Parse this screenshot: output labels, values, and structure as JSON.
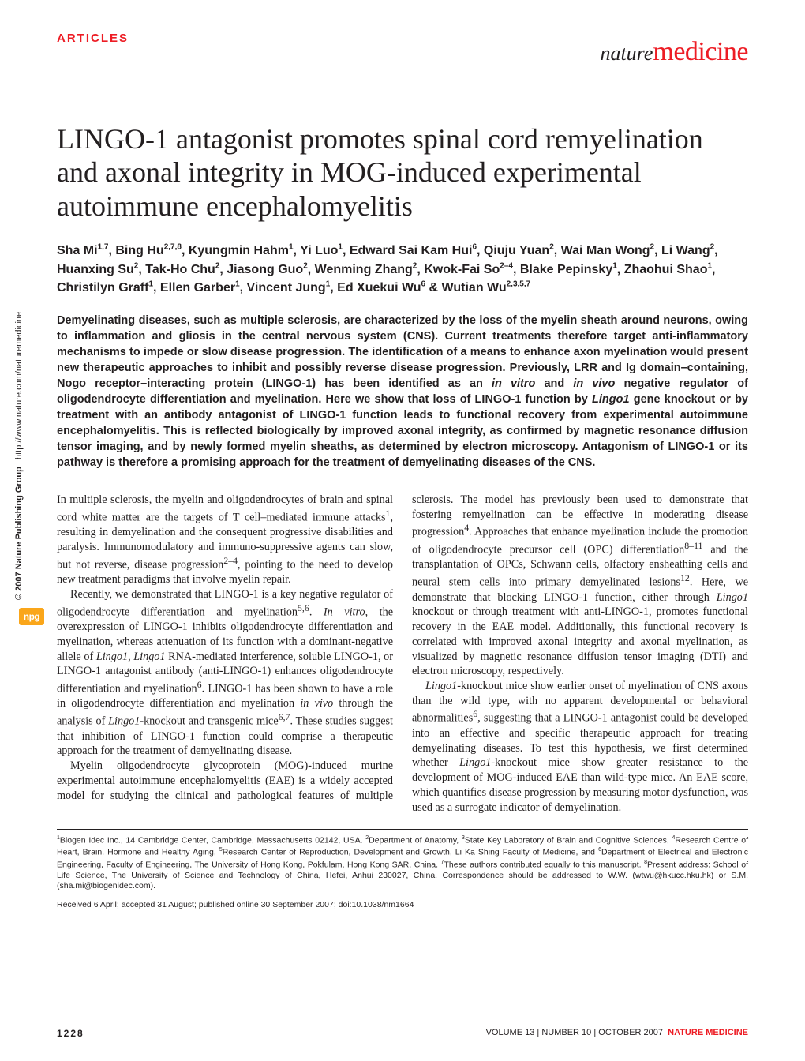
{
  "header": {
    "section": "ARTICLES",
    "journal_nature": "nature",
    "journal_medicine": "medicine"
  },
  "title": "LINGO-1 antagonist promotes spinal cord remyelination and axonal integrity in MOG-induced experimental autoimmune encephalomyelitis",
  "authors_html": "Sha Mi<sup>1,7</sup>, Bing Hu<sup>2,7,8</sup>, Kyungmin Hahm<sup>1</sup>, Yi Luo<sup>1</sup>, Edward Sai Kam Hui<sup>6</sup>, Qiuju Yuan<sup>2</sup>, Wai Man Wong<sup>2</sup>, Li Wang<sup>2</sup>, Huanxing Su<sup>2</sup>, Tak-Ho Chu<sup>2</sup>, Jiasong Guo<sup>2</sup>, Wenming Zhang<sup>2</sup>, Kwok-Fai So<sup>2–4</sup>, Blake Pepinsky<sup>1</sup>, Zhaohui Shao<sup>1</sup>, Christilyn Graff<sup>1</sup>, Ellen Garber<sup>1</sup>, Vincent Jung<sup>1</sup>, Ed Xuekui Wu<sup>6</sup> & Wutian Wu<sup>2,3,5,7</sup>",
  "abstract_html": "Demyelinating diseases, such as multiple sclerosis, are characterized by the loss of the myelin sheath around neurons, owing to inflammation and gliosis in the central nervous system (CNS). Current treatments therefore target anti-inflammatory mechanisms to impede or slow disease progression. The identification of a means to enhance axon myelination would present new therapeutic approaches to inhibit and possibly reverse disease progression. Previously, LRR and Ig domain–containing, Nogo receptor–interacting protein (LINGO-1) has been identified as an <em>in vitro</em> and <em>in vivo</em> negative regulator of oligodendrocyte differentiation and myelination. Here we show that loss of LINGO-1 function by <em>Lingo1</em> gene knockout or by treatment with an antibody antagonist of LINGO-1 function leads to functional recovery from experimental autoimmune encephalomyelitis. This is reflected biologically by improved axonal integrity, as confirmed by magnetic resonance diffusion tensor imaging, and by newly formed myelin sheaths, as determined by electron microscopy. Antagonism of LINGO-1 or its pathway is therefore a promising approach for the treatment of demyelinating diseases of the CNS.",
  "body": {
    "p1": "In multiple sclerosis, the myelin and oligodendrocytes of brain and spinal cord white matter are the targets of T cell–mediated immune attacks<sup>1</sup>, resulting in demyelination and the consequent progressive disabilities and paralysis. Immunomodulatory and immuno-suppressive agents can slow, but not reverse, disease progression<sup>2–4</sup>, pointing to the need to develop new treatment paradigms that involve myelin repair.",
    "p2": "Recently, we demonstrated that LINGO-1 is a key negative regulator of oligodendrocyte differentiation and myelination<sup>5,6</sup>. <em>In vitro</em>, the overexpression of LINGO-1 inhibits oligodendrocyte differentiation and myelination, whereas attenuation of its function with a dominant-negative allele of <em>Lingo1</em>, <em>Lingo1</em> RNA-mediated interference, soluble LINGO-1, or LINGO-1 antagonist antibody (anti-LINGO-1) enhances oligodendrocyte differentiation and myelination<sup>6</sup>. LINGO-1 has been shown to have a role in oligodendrocyte differentiation and myelination <em>in vivo</em> through the analysis of <em>Lingo1</em>-knockout and transgenic mice<sup>6,7</sup>. These studies suggest that inhibition of LINGO-1 function could comprise a therapeutic approach for the treatment of demyelinating disease.",
    "p3": "Myelin oligodendrocyte glycoprotein (MOG)-induced murine experimental autoimmune encephalomyelitis (EAE) is a widely accepted model for studying the clinical and pathological features of multiple sclerosis. The model has previously been used to demonstrate that fostering remyelination can be effective in moderating disease progression<sup>4</sup>. Approaches that enhance myelination include the promotion of oligodendrocyte precursor cell (OPC) differentiation<sup>8–11</sup> and the transplantation of OPCs, Schwann cells, olfactory ensheathing cells and neural stem cells into primary demyelinated lesions<sup>12</sup>. Here, we demonstrate that blocking LINGO-1 function, either through <em>Lingo1</em> knockout or through treatment with anti-LINGO-1, promotes functional recovery in the EAE model. Additionally, this functional recovery is correlated with improved axonal integrity and axonal myelination, as visualized by magnetic resonance diffusion tensor imaging (DTI) and electron microscopy, respectively.",
    "p4": "<em>Lingo1</em>-knockout mice show earlier onset of myelination of CNS axons than the wild type, with no apparent developmental or behavioral abnormalities<sup>6</sup>, suggesting that a LINGO-1 antagonist could be developed into an effective and specific therapeutic approach for treating demyelinating diseases. To test this hypothesis, we first determined whether <em>Lingo1</em>-knockout mice show greater resistance to the development of MOG-induced EAE than wild-type mice. An EAE score, which quantifies disease progression by measuring motor dysfunction, was used as a surrogate indicator of demyelination."
  },
  "affiliations_html": "<sup>1</sup>Biogen Idec Inc., 14 Cambridge Center, Cambridge, Massachusetts 02142, USA. <sup>2</sup>Department of Anatomy, <sup>3</sup>State Key Laboratory of Brain and Cognitive Sciences, <sup>4</sup>Research Centre of Heart, Brain, Hormone and Healthy Aging, <sup>5</sup>Research Center of Reproduction, Development and Growth, Li Ka Shing Faculty of Medicine, and <sup>6</sup>Department of Electrical and Electronic Engineering, Faculty of Engineering, The University of Hong Kong, Pokfulam, Hong Kong SAR, China. <sup>7</sup>These authors contributed equally to this manuscript. <sup>8</sup>Present address: School of Life Science, The University of Science and Technology of China, Hefei, Anhui 230027, China. Correspondence should be addressed to W.W. (wtwu@hkucc.hku.hk) or S.M. (sha.mi@biogenidec.com).",
  "received": "Received 6 April; accepted 31 August; published online 30 September 2007; doi:10.1038/nm1664",
  "footer": {
    "page_number": "1228",
    "volume": "VOLUME 13",
    "issue": "NUMBER 10",
    "date": "OCTOBER 2007",
    "journal": "NATURE MEDICINE"
  },
  "sidebar": {
    "copyright": "© 2007 Nature Publishing Group",
    "url": "http://www.nature.com/naturemedicine",
    "badge": "npg"
  },
  "colors": {
    "red": "#ed1c24",
    "text": "#231f20",
    "badge_bg": "#faa61a",
    "background": "#ffffff"
  },
  "typography": {
    "title_fontsize": 36,
    "authors_fontsize": 16,
    "abstract_fontsize": 14.5,
    "body_fontsize": 14.2,
    "affiliations_fontsize": 10.5,
    "footer_fontsize": 12,
    "section_header_fontsize": 15
  }
}
